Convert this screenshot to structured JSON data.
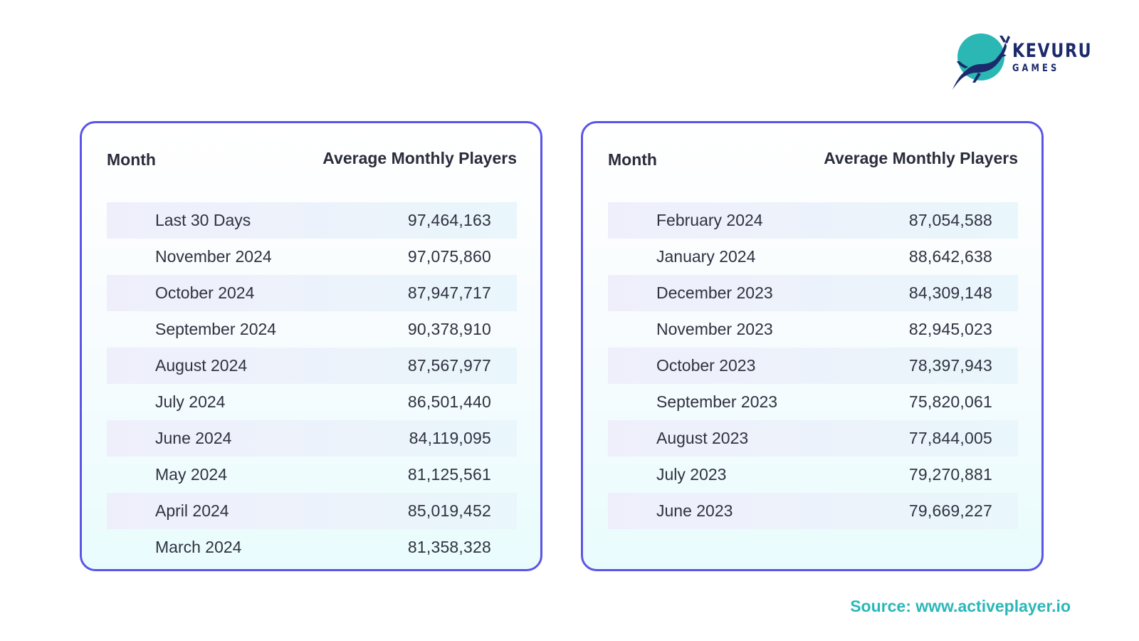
{
  "brand": {
    "name": "KEVURU",
    "subtitle": "GAMES",
    "colors": {
      "circle": "#2bb8b5",
      "deer": "#1b2a6b",
      "text": "#1b2a6b"
    },
    "icon": "deer-logo-icon"
  },
  "colors": {
    "border": "#5a55e6",
    "row_shade": "#eef0fb",
    "source": "#2bb7b9",
    "text": "#2a2d3a"
  },
  "source": "Source: www.activeplayer.io",
  "chart_data": [
    {
      "type": "table",
      "columns": [
        "Month",
        "Average Monthly Players"
      ],
      "rows": [
        [
          "Last 30 Days",
          "97,464,163"
        ],
        [
          "November 2024",
          "97,075,860"
        ],
        [
          "October 2024",
          "87,947,717"
        ],
        [
          "September 2024",
          "90,378,910"
        ],
        [
          "August 2024",
          "87,567,977"
        ],
        [
          "July 2024",
          "86,501,440"
        ],
        [
          "June 2024",
          "84,119,095"
        ],
        [
          "May 2024",
          "81,125,561"
        ],
        [
          "April 2024",
          "85,019,452"
        ],
        [
          "March 2024",
          "81,358,328"
        ]
      ]
    },
    {
      "type": "table",
      "columns": [
        "Month",
        "Average Monthly Players"
      ],
      "rows": [
        [
          "February 2024",
          "87,054,588"
        ],
        [
          "January 2024",
          "88,642,638"
        ],
        [
          "December 2023",
          "84,309,148"
        ],
        [
          "November 2023",
          "82,945,023"
        ],
        [
          "October 2023",
          "78,397,943"
        ],
        [
          "September 2023",
          "75,820,061"
        ],
        [
          "August 2023",
          "77,844,005"
        ],
        [
          "July 2023",
          "79,270,881"
        ],
        [
          "June 2023",
          "79,669,227"
        ]
      ]
    }
  ]
}
